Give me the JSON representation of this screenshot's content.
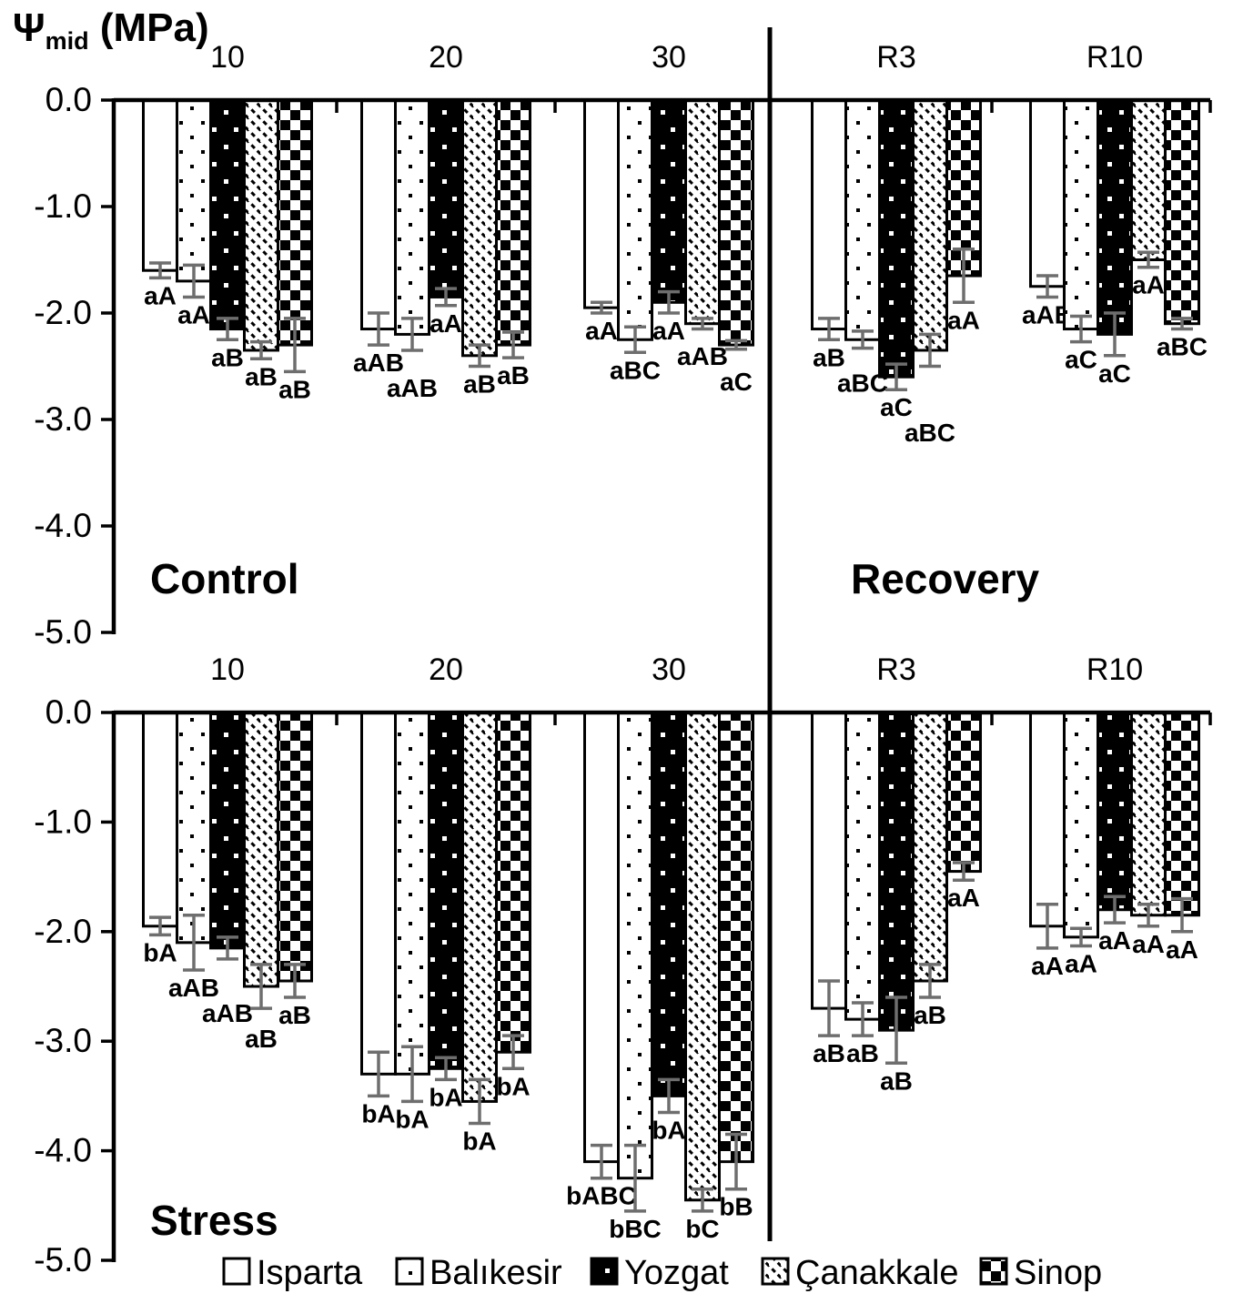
{
  "figure": {
    "title": {
      "psi": "Ψ",
      "sub": "mid",
      "unit": " (MPa)"
    }
  },
  "chart_data": {
    "type": "bar",
    "title": "Ψmid (MPa)",
    "ylabel": "Ψmid (MPa)",
    "ylim": [
      0,
      -5.0
    ],
    "grid": false,
    "legend_position": "bottom",
    "ytick_labels": [
      "0.0",
      "-1.0",
      "-2.0",
      "-3.0",
      "-4.0",
      "-5.0"
    ],
    "group_labels": [
      "10",
      "20",
      "30",
      "R3",
      "R10"
    ],
    "series": [
      "Isparta",
      "Balıkesir",
      "Yozgat",
      "Çanakkale",
      "Sinop"
    ],
    "series_patterns": [
      "plain-white",
      "black-dots-on-white",
      "white-dots-on-black",
      "diagonal-dashes",
      "checkerboard"
    ],
    "error_bar_color": "#6e6e6e",
    "bar_outline_color": "#000000",
    "panels": [
      {
        "section_left": "Control",
        "section_right": "Recovery",
        "groups": [
          {
            "name": "10",
            "values": [
              -1.6,
              -1.7,
              -2.15,
              -2.35,
              -2.3
            ],
            "errors": [
              0.07,
              0.15,
              0.1,
              0.08,
              0.25
            ],
            "sig": [
              "aA",
              "aA",
              "aB",
              "aB",
              "aB"
            ]
          },
          {
            "name": "20",
            "values": [
              -2.15,
              -2.2,
              -1.85,
              -2.4,
              -2.3
            ],
            "errors": [
              0.15,
              0.15,
              0.08,
              0.1,
              0.12
            ],
            "sig": [
              "aAB",
              "aAB",
              "aA",
              "aB",
              "aB"
            ]
          },
          {
            "name": "30",
            "values": [
              -1.95,
              -2.25,
              -1.9,
              -2.1,
              -2.3
            ],
            "errors": [
              0.05,
              0.12,
              0.1,
              0.05,
              0.04
            ],
            "sig": [
              "aA",
              "aBC",
              "aA",
              "aAB",
              "aC"
            ]
          },
          {
            "name": "R3",
            "values": [
              -2.15,
              -2.25,
              -2.6,
              -2.35,
              -1.65
            ],
            "errors": [
              0.1,
              0.08,
              0.12,
              0.15,
              0.25
            ],
            "sig": [
              "aB",
              "aBC",
              "aC",
              "aBC",
              "aA"
            ]
          },
          {
            "name": "R10",
            "values": [
              -1.75,
              -2.15,
              -2.2,
              -1.5,
              -2.1
            ],
            "errors": [
              0.1,
              0.12,
              0.2,
              0.07,
              0.05
            ],
            "sig": [
              "aAB",
              "aC",
              "aC",
              "aA",
              "aBC"
            ]
          }
        ]
      },
      {
        "section_left": "Stress",
        "section_right": "",
        "groups": [
          {
            "name": "10",
            "values": [
              -1.95,
              -2.1,
              -2.15,
              -2.5,
              -2.45
            ],
            "errors": [
              0.08,
              0.25,
              0.1,
              0.2,
              0.15
            ],
            "sig": [
              "bA",
              "aAB",
              "aAB",
              "aB",
              "aB"
            ]
          },
          {
            "name": "20",
            "values": [
              -3.3,
              -3.3,
              -3.25,
              -3.55,
              -3.1
            ],
            "errors": [
              0.2,
              0.25,
              0.1,
              0.2,
              0.15
            ],
            "sig": [
              "bA",
              "bA",
              "bA",
              "bA",
              "bA"
            ]
          },
          {
            "name": "30",
            "values": [
              -4.1,
              -4.25,
              -3.5,
              -4.45,
              -4.1
            ],
            "errors": [
              0.15,
              0.3,
              0.15,
              0.1,
              0.25
            ],
            "sig": [
              "bABC",
              "bBC",
              "bA",
              "bC",
              "bB"
            ]
          },
          {
            "name": "R3",
            "values": [
              -2.7,
              -2.8,
              -2.9,
              -2.45,
              -1.45
            ],
            "errors": [
              0.25,
              0.15,
              0.3,
              0.15,
              0.08
            ],
            "sig": [
              "aB",
              "aB",
              "aB",
              "aB",
              "aA"
            ]
          },
          {
            "name": "R10",
            "values": [
              -1.95,
              -2.05,
              -1.8,
              -1.85,
              -1.85
            ],
            "errors": [
              0.2,
              0.08,
              0.12,
              0.1,
              0.15
            ],
            "sig": [
              "aA",
              "aA",
              "aA",
              "aA",
              "aA"
            ]
          }
        ]
      }
    ],
    "legend": [
      "Isparta",
      "Balıkesir",
      "Yozgat",
      "Çanakkale",
      "Sinop"
    ]
  }
}
